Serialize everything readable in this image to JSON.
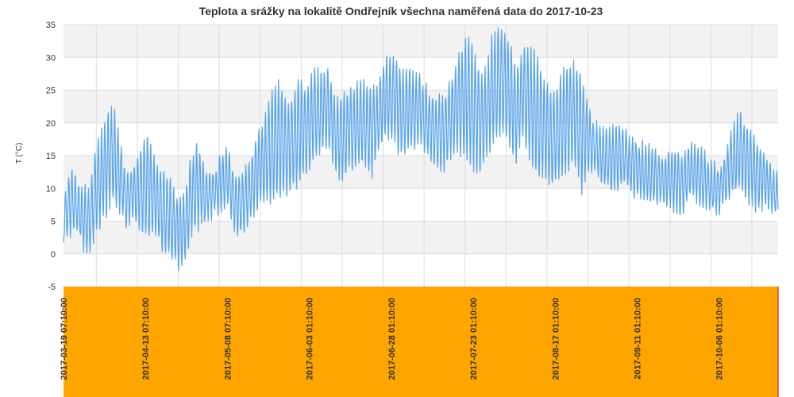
{
  "chart_data": {
    "type": "line",
    "title": "Teplota a srážky na lokalitě Ondřejník všechna naměřená data do 2017-10-23",
    "ylabel": "T (°C)",
    "xlabel": "",
    "ylim": [
      -5,
      35
    ],
    "yticks": [
      -5,
      0,
      5,
      10,
      15,
      20,
      25,
      30,
      35
    ],
    "x_tick_labels": [
      "2017-03-19 07:10:00",
      "2017-04-13 07:10:00",
      "2017-05-08 07:10:00",
      "2017-06-03 01:10:00",
      "2017-06-28 01:10:00",
      "2017-07-23 01:10:00",
      "2017-08-17 01:10:00",
      "2017-09-11 01:10:00",
      "2017-10-06 01:10:00"
    ],
    "x_range_days": [
      0,
      218
    ],
    "x_tick_days": [
      0,
      25,
      50,
      75,
      100,
      125,
      150,
      175,
      200
    ],
    "grid": true,
    "series": [
      {
        "name": "",
        "color": "#5aa5eb",
        "x_days": [
          0,
          2,
          4,
          6,
          8,
          10,
          13,
          15,
          17,
          19,
          21,
          24,
          26,
          28,
          30,
          32,
          35,
          37,
          39,
          41,
          43,
          46,
          48,
          50,
          52,
          54,
          57,
          59,
          61,
          63,
          65,
          68,
          70,
          72,
          74,
          76,
          79,
          81,
          83,
          85,
          87,
          90,
          92,
          94,
          96,
          98,
          101,
          103,
          105,
          107,
          109,
          112,
          114,
          116,
          118,
          120,
          123,
          125,
          127,
          129,
          131,
          134,
          136,
          138,
          140,
          142,
          145,
          147,
          149,
          151,
          153,
          156,
          158,
          160,
          162,
          164,
          167,
          169,
          171,
          173,
          175,
          178,
          180,
          182,
          184,
          186,
          189,
          191,
          193,
          195,
          197,
          200,
          202,
          204,
          206,
          208,
          211,
          213,
          215,
          217
        ],
        "daily_min": [
          2,
          3,
          4,
          1,
          0,
          3,
          6,
          8,
          7,
          4,
          5,
          3,
          2,
          3,
          1,
          0,
          -2,
          -1,
          3,
          4,
          5,
          6,
          7,
          8,
          4,
          3,
          5,
          7,
          8,
          8,
          9,
          9,
          10,
          11,
          12,
          14,
          16,
          16,
          13,
          11,
          13,
          14,
          13,
          12,
          16,
          18,
          17,
          15,
          16,
          16,
          17,
          14,
          13,
          13,
          15,
          15,
          15,
          13,
          12,
          15,
          17,
          18,
          17,
          14,
          18,
          15,
          11,
          12,
          10,
          11,
          12,
          14,
          9,
          13,
          13,
          11,
          10,
          10,
          11,
          9,
          9,
          8,
          8,
          8,
          7,
          7,
          6,
          9,
          8,
          7,
          7,
          6,
          8,
          9,
          10,
          8,
          7,
          7,
          7,
          6
        ],
        "daily_max": [
          8,
          13,
          11,
          10,
          10,
          17,
          21,
          23,
          18,
          12,
          13,
          17,
          19,
          14,
          13,
          12,
          8,
          9,
          15,
          17,
          13,
          12,
          15,
          16,
          12,
          12,
          14,
          18,
          20,
          24,
          27,
          23,
          24,
          27,
          25,
          28,
          28,
          28,
          23,
          24,
          25,
          26,
          26,
          25,
          26,
          30,
          31,
          28,
          28,
          28,
          27,
          24,
          24,
          24,
          26,
          30,
          33,
          32,
          28,
          28,
          34,
          34,
          33,
          28,
          31,
          32,
          30,
          26,
          24,
          26,
          29,
          29,
          28,
          22,
          20,
          19,
          19,
          20,
          19,
          18,
          17,
          17,
          16,
          15,
          15,
          16,
          15,
          17,
          16,
          16,
          14,
          13,
          15,
          19,
          22,
          20,
          18,
          16,
          14,
          12
        ]
      }
    ]
  }
}
